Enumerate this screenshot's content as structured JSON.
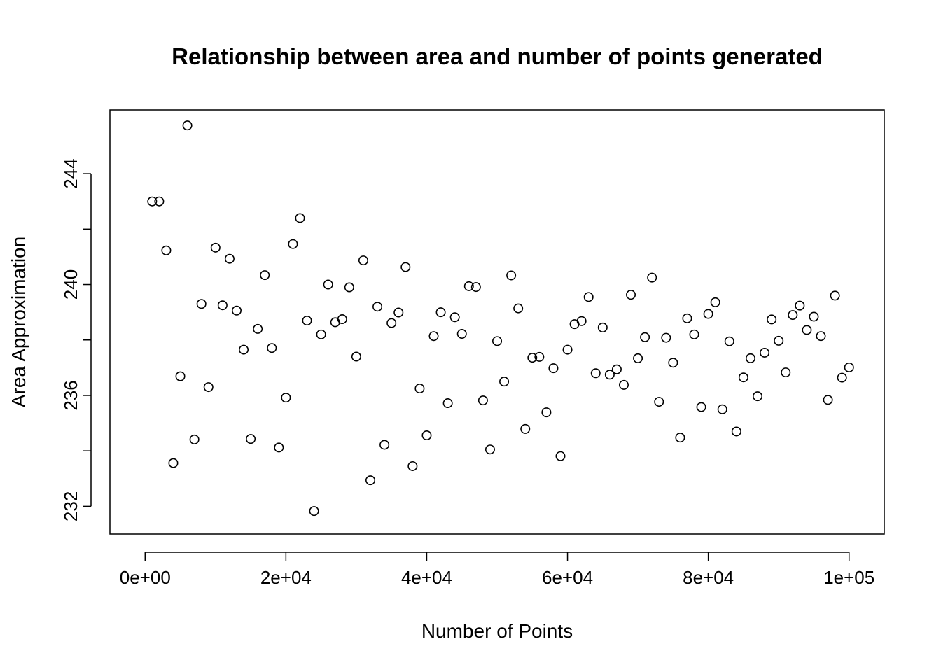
{
  "chart_data": {
    "type": "scatter",
    "title": "Relationship between area and number of points generated",
    "xlabel": "Number of Points",
    "ylabel": "Area Approximation",
    "xlim": [
      -5000,
      105000
    ],
    "ylim": [
      231,
      246.3
    ],
    "x_ticks": [
      0,
      20000,
      40000,
      60000,
      80000,
      100000
    ],
    "x_tick_labels": [
      "0e+00",
      "2e+04",
      "4e+04",
      "6e+04",
      "8e+04",
      "1e+05"
    ],
    "y_ticks": [
      232,
      234,
      236,
      238,
      240,
      242,
      244
    ],
    "y_tick_labels": [
      "232",
      "",
      "236",
      "",
      "240",
      "",
      "244"
    ],
    "grid": false,
    "marker": "open-circle",
    "point_color": "#000000",
    "x": [
      1000,
      2000,
      3000,
      4000,
      5000,
      6000,
      7000,
      8000,
      9000,
      10000,
      11000,
      12000,
      13000,
      14000,
      15000,
      16000,
      17000,
      18000,
      19000,
      20000,
      21000,
      22000,
      23000,
      24000,
      25000,
      26000,
      27000,
      28000,
      29000,
      30000,
      31000,
      32000,
      33000,
      34000,
      35000,
      36000,
      37000,
      38000,
      39000,
      40000,
      41000,
      42000,
      43000,
      44000,
      45000,
      46000,
      47000,
      48000,
      49000,
      50000,
      51000,
      52000,
      53000,
      54000,
      55000,
      56000,
      57000,
      58000,
      59000,
      60000,
      61000,
      62000,
      63000,
      64000,
      65000,
      66000,
      67000,
      68000,
      69000,
      70000,
      71000,
      72000,
      73000,
      74000,
      75000,
      76000,
      77000,
      78000,
      79000,
      80000,
      81000,
      82000,
      83000,
      84000,
      85000,
      86000,
      87000,
      88000,
      89000,
      90000,
      91000,
      92000,
      93000,
      94000,
      95000,
      96000,
      97000,
      98000,
      99000,
      100000
    ],
    "y": [
      243.0,
      243.0,
      241.23,
      233.56,
      236.69,
      245.74,
      234.41,
      239.3,
      236.3,
      241.33,
      239.25,
      240.93,
      239.06,
      237.65,
      234.43,
      238.4,
      240.34,
      237.71,
      234.12,
      235.92,
      241.46,
      242.4,
      238.7,
      231.83,
      238.2,
      240.0,
      238.64,
      238.75,
      239.9,
      237.4,
      240.87,
      232.94,
      239.2,
      234.22,
      238.61,
      238.99,
      240.63,
      233.45,
      236.25,
      234.56,
      238.14,
      239.0,
      235.72,
      238.82,
      238.22,
      239.94,
      239.91,
      235.82,
      234.05,
      237.96,
      236.5,
      240.33,
      239.14,
      234.79,
      237.36,
      237.39,
      235.39,
      236.98,
      233.81,
      237.65,
      238.57,
      238.68,
      239.55,
      236.8,
      238.45,
      236.75,
      236.94,
      236.38,
      239.63,
      237.34,
      238.1,
      240.25,
      235.77,
      238.08,
      237.18,
      234.48,
      238.78,
      238.2,
      235.58,
      238.94,
      239.36,
      235.5,
      237.95,
      234.7,
      236.65,
      237.34,
      235.97,
      237.54,
      238.74,
      237.97,
      236.83,
      238.9,
      239.24,
      238.36,
      238.84,
      238.14,
      235.84,
      239.6,
      236.64,
      237.01
    ]
  }
}
